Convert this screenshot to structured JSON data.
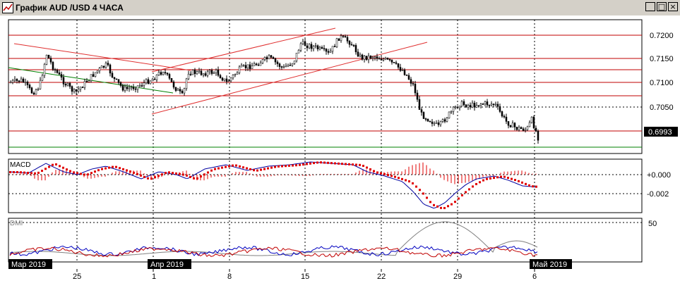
{
  "window": {
    "title": "График AUD /USD  4 ЧАСА",
    "minimize_label": "_",
    "maximize_label": "□",
    "close_label": "×"
  },
  "price_panel": {
    "price_levels": [
      "0.7200",
      "0.7150",
      "0.7100",
      "0.7050"
    ],
    "current_price": "0.6993",
    "current_price_color": "#000000"
  },
  "macd_panel": {
    "label": "MACD",
    "levels": [
      "+0.000",
      "-0.002"
    ]
  },
  "dmi_panel": {
    "label": "DMI",
    "levels": [
      "50"
    ]
  },
  "time_axis": {
    "month_labels": [
      "Мар 2019",
      "Апр 2019",
      "Май 2019"
    ],
    "day_labels": [
      "25",
      "1",
      "8",
      "15",
      "22",
      "29",
      "6"
    ]
  },
  "colors": {
    "candle": "#000000",
    "resistance_lines": "#c00000",
    "trend_channel": "#e03030",
    "support_green": "#008000",
    "macd_line": "#0000a0",
    "macd_signal": "#e00000",
    "dmi_plus": "#0000c0",
    "dmi_minus": "#c00000",
    "adx": "#808080"
  }
}
